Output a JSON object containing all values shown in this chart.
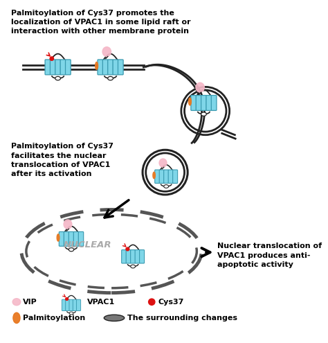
{
  "title_top": "Palmitoylation of Cys37 promotes the\nlocalization of VPAC1 in some lipid raft or\ninteraction with other membrane protein",
  "text_mid": "Palmitoylation of Cys37\nfacilitates the nuclear\ntranslocation of VPAC1\nafter its activation",
  "text_right": "Nuclear translocation of\nVPAC1 produces anti-\napoptotic activity",
  "nuclear_label": "NUCLEAR",
  "legend_vip": "VIP",
  "legend_vpac1": "VPAC1",
  "legend_cys37": "Cys37",
  "legend_palm": "Palmitoylation",
  "legend_surr": "The surrounding changes",
  "bg_color": "#ffffff",
  "membrane_color": "#222222",
  "vpac1_color": "#7fd6e8",
  "vpac1_edge": "#3a9ab0",
  "vip_color": "#f5b8c8",
  "cys37_color": "#dd1111",
  "palm_color": "#e87820",
  "nuc_color": "#555555"
}
